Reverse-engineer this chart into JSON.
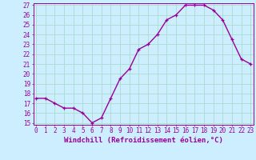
{
  "x": [
    0,
    1,
    2,
    3,
    4,
    5,
    6,
    7,
    8,
    9,
    10,
    11,
    12,
    13,
    14,
    15,
    16,
    17,
    18,
    19,
    20,
    21,
    22,
    23
  ],
  "y": [
    17.5,
    17.5,
    17.0,
    16.5,
    16.5,
    16.0,
    15.0,
    15.5,
    17.5,
    19.5,
    20.5,
    22.5,
    23.0,
    24.0,
    25.5,
    26.0,
    27.0,
    27.0,
    27.0,
    26.5,
    25.5,
    23.5,
    21.5,
    21.0
  ],
  "xlabel": "Windchill (Refroidissement éolien,°C)",
  "ylim_min": 15,
  "ylim_max": 27,
  "xlim_min": 0,
  "xlim_max": 23,
  "yticks": [
    15,
    16,
    17,
    18,
    19,
    20,
    21,
    22,
    23,
    24,
    25,
    26,
    27
  ],
  "xticks": [
    0,
    1,
    2,
    3,
    4,
    5,
    6,
    7,
    8,
    9,
    10,
    11,
    12,
    13,
    14,
    15,
    16,
    17,
    18,
    19,
    20,
    21,
    22,
    23
  ],
  "line_color": "#990099",
  "marker": "+",
  "bg_color": "#cceeff",
  "grid_color": "#aaddcc",
  "font_color": "#990099",
  "font_family": "monospace",
  "tick_fontsize": 5.5,
  "xlabel_fontsize": 6.5
}
